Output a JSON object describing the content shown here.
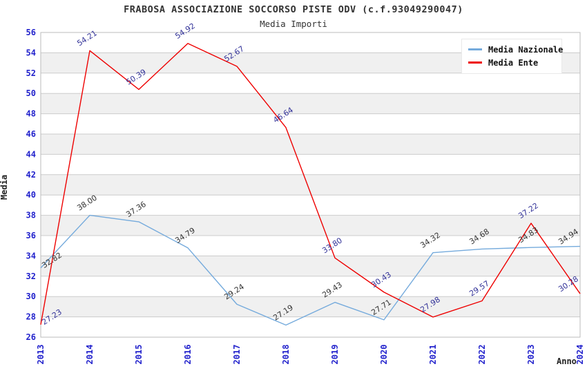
{
  "title": "FRABOSA ASSOCIAZIONE SOCCORSO PISTE ODV (c.f.93049290047)",
  "subtitle": "Media Importi",
  "axes": {
    "y_label": "Media",
    "x_label": "Anno",
    "y_min": 26,
    "y_max": 56,
    "y_step": 2
  },
  "colors": {
    "tick_label": "#2222cc",
    "grid_line": "#cccccc",
    "plot_border": "#bbbbbb",
    "band_gray": "#f0f0f0",
    "band_white": "#ffffff",
    "title_text": "#333333"
  },
  "chart_data": {
    "type": "line",
    "title": "FRABOSA ASSOCIAZIONE SOCCORSO PISTE ODV (c.f.93049290047)",
    "subtitle": "Media Importi",
    "xlabel": "Anno",
    "ylabel": "Media",
    "ylim": [
      26,
      56
    ],
    "y_step": 2,
    "grid": true,
    "legend_position": "top-right",
    "categories": [
      "2013",
      "2014",
      "2015",
      "2016",
      "2017",
      "2018",
      "2019",
      "2020",
      "2021",
      "2022",
      "2023",
      "2024"
    ],
    "series": [
      {
        "name": "Media Nazionale",
        "color": "#74aadc",
        "label_color": "#333333",
        "values": [
          32.82,
          38.0,
          37.36,
          34.79,
          29.24,
          27.19,
          29.43,
          27.71,
          34.32,
          34.68,
          34.83,
          34.94
        ]
      },
      {
        "name": "Media Ente",
        "color": "#ee0000",
        "label_color": "#333399",
        "values": [
          27.23,
          54.21,
          50.39,
          54.92,
          52.67,
          46.64,
          33.8,
          30.43,
          27.98,
          29.57,
          37.22,
          30.28
        ]
      }
    ]
  }
}
